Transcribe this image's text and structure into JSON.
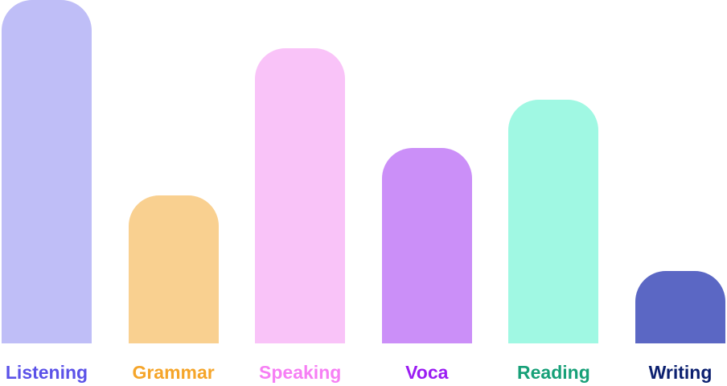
{
  "chart_data": {
    "type": "bar",
    "title": "",
    "xlabel": "",
    "ylabel": "",
    "grid": false,
    "legend": "none",
    "ylim": [
      0,
      100
    ],
    "categories": [
      "Listening",
      "Grammar",
      "Speaking",
      "Voca",
      "Reading",
      "Writing"
    ],
    "values": [
      100,
      43,
      86,
      57,
      71,
      21
    ],
    "bar_colors": [
      "#bfbef7",
      "#f9d090",
      "#f9c3f8",
      "#cb8ff8",
      "#a0f8e3",
      "#5b67c4"
    ],
    "label_colors": [
      "#5b52e8",
      "#f5a52a",
      "#f67ff4",
      "#9b1df3",
      "#17a078",
      "#0d2170"
    ]
  }
}
